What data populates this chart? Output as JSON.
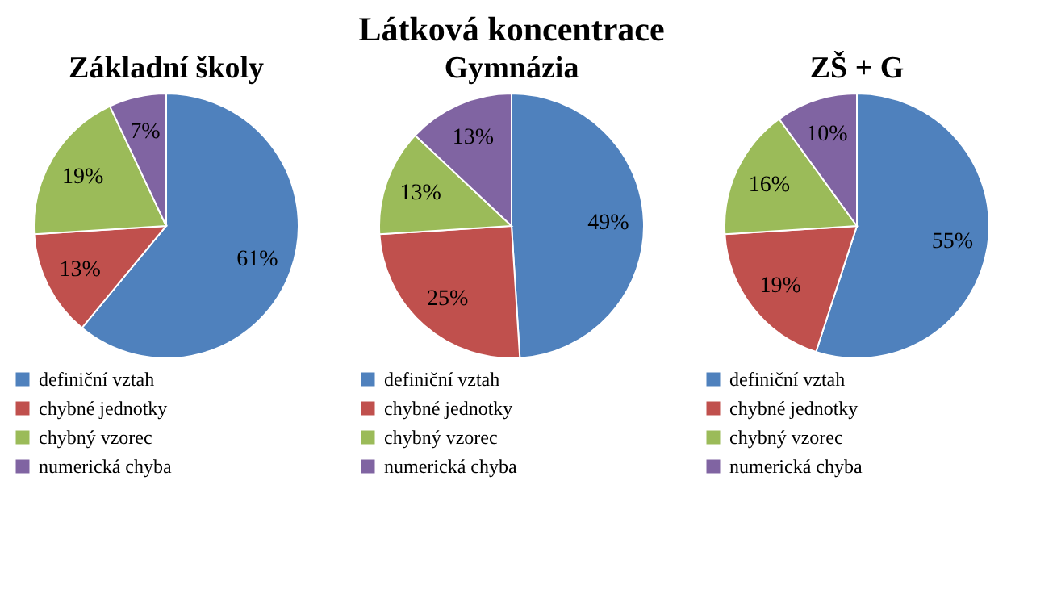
{
  "chart_data": [
    {
      "type": "pie",
      "title": "Základní školy",
      "annotations": [
        "Látková koncentrace"
      ],
      "categories": [
        "definiční vztah",
        "chybné jednotky",
        "chybný vzorec",
        "numerická chyba"
      ],
      "values": [
        61,
        13,
        19,
        7
      ],
      "value_labels": [
        "61%",
        "13%",
        "19%",
        "7%"
      ],
      "colors": [
        "#4f81bd",
        "#c0504d",
        "#9bbb59",
        "#8064a2"
      ],
      "legend": "bottom"
    },
    {
      "type": "pie",
      "title": "Gymnázia",
      "categories": [
        "definiční vztah",
        "chybné jednotky",
        "chybný vzorec",
        "numerická chyba"
      ],
      "values": [
        49,
        25,
        13,
        13
      ],
      "value_labels": [
        "49%",
        "25%",
        "13%",
        "13%"
      ],
      "colors": [
        "#4f81bd",
        "#c0504d",
        "#9bbb59",
        "#8064a2"
      ],
      "legend": "bottom"
    },
    {
      "type": "pie",
      "title": "ZŠ + G",
      "categories": [
        "definiční vztah",
        "chybné jednotky",
        "chybný vzorec",
        "numerická chyba"
      ],
      "values": [
        55,
        19,
        16,
        10
      ],
      "value_labels": [
        "55%",
        "19%",
        "16%",
        "10%"
      ],
      "colors": [
        "#4f81bd",
        "#c0504d",
        "#9bbb59",
        "#8064a2"
      ],
      "legend": "bottom"
    }
  ]
}
